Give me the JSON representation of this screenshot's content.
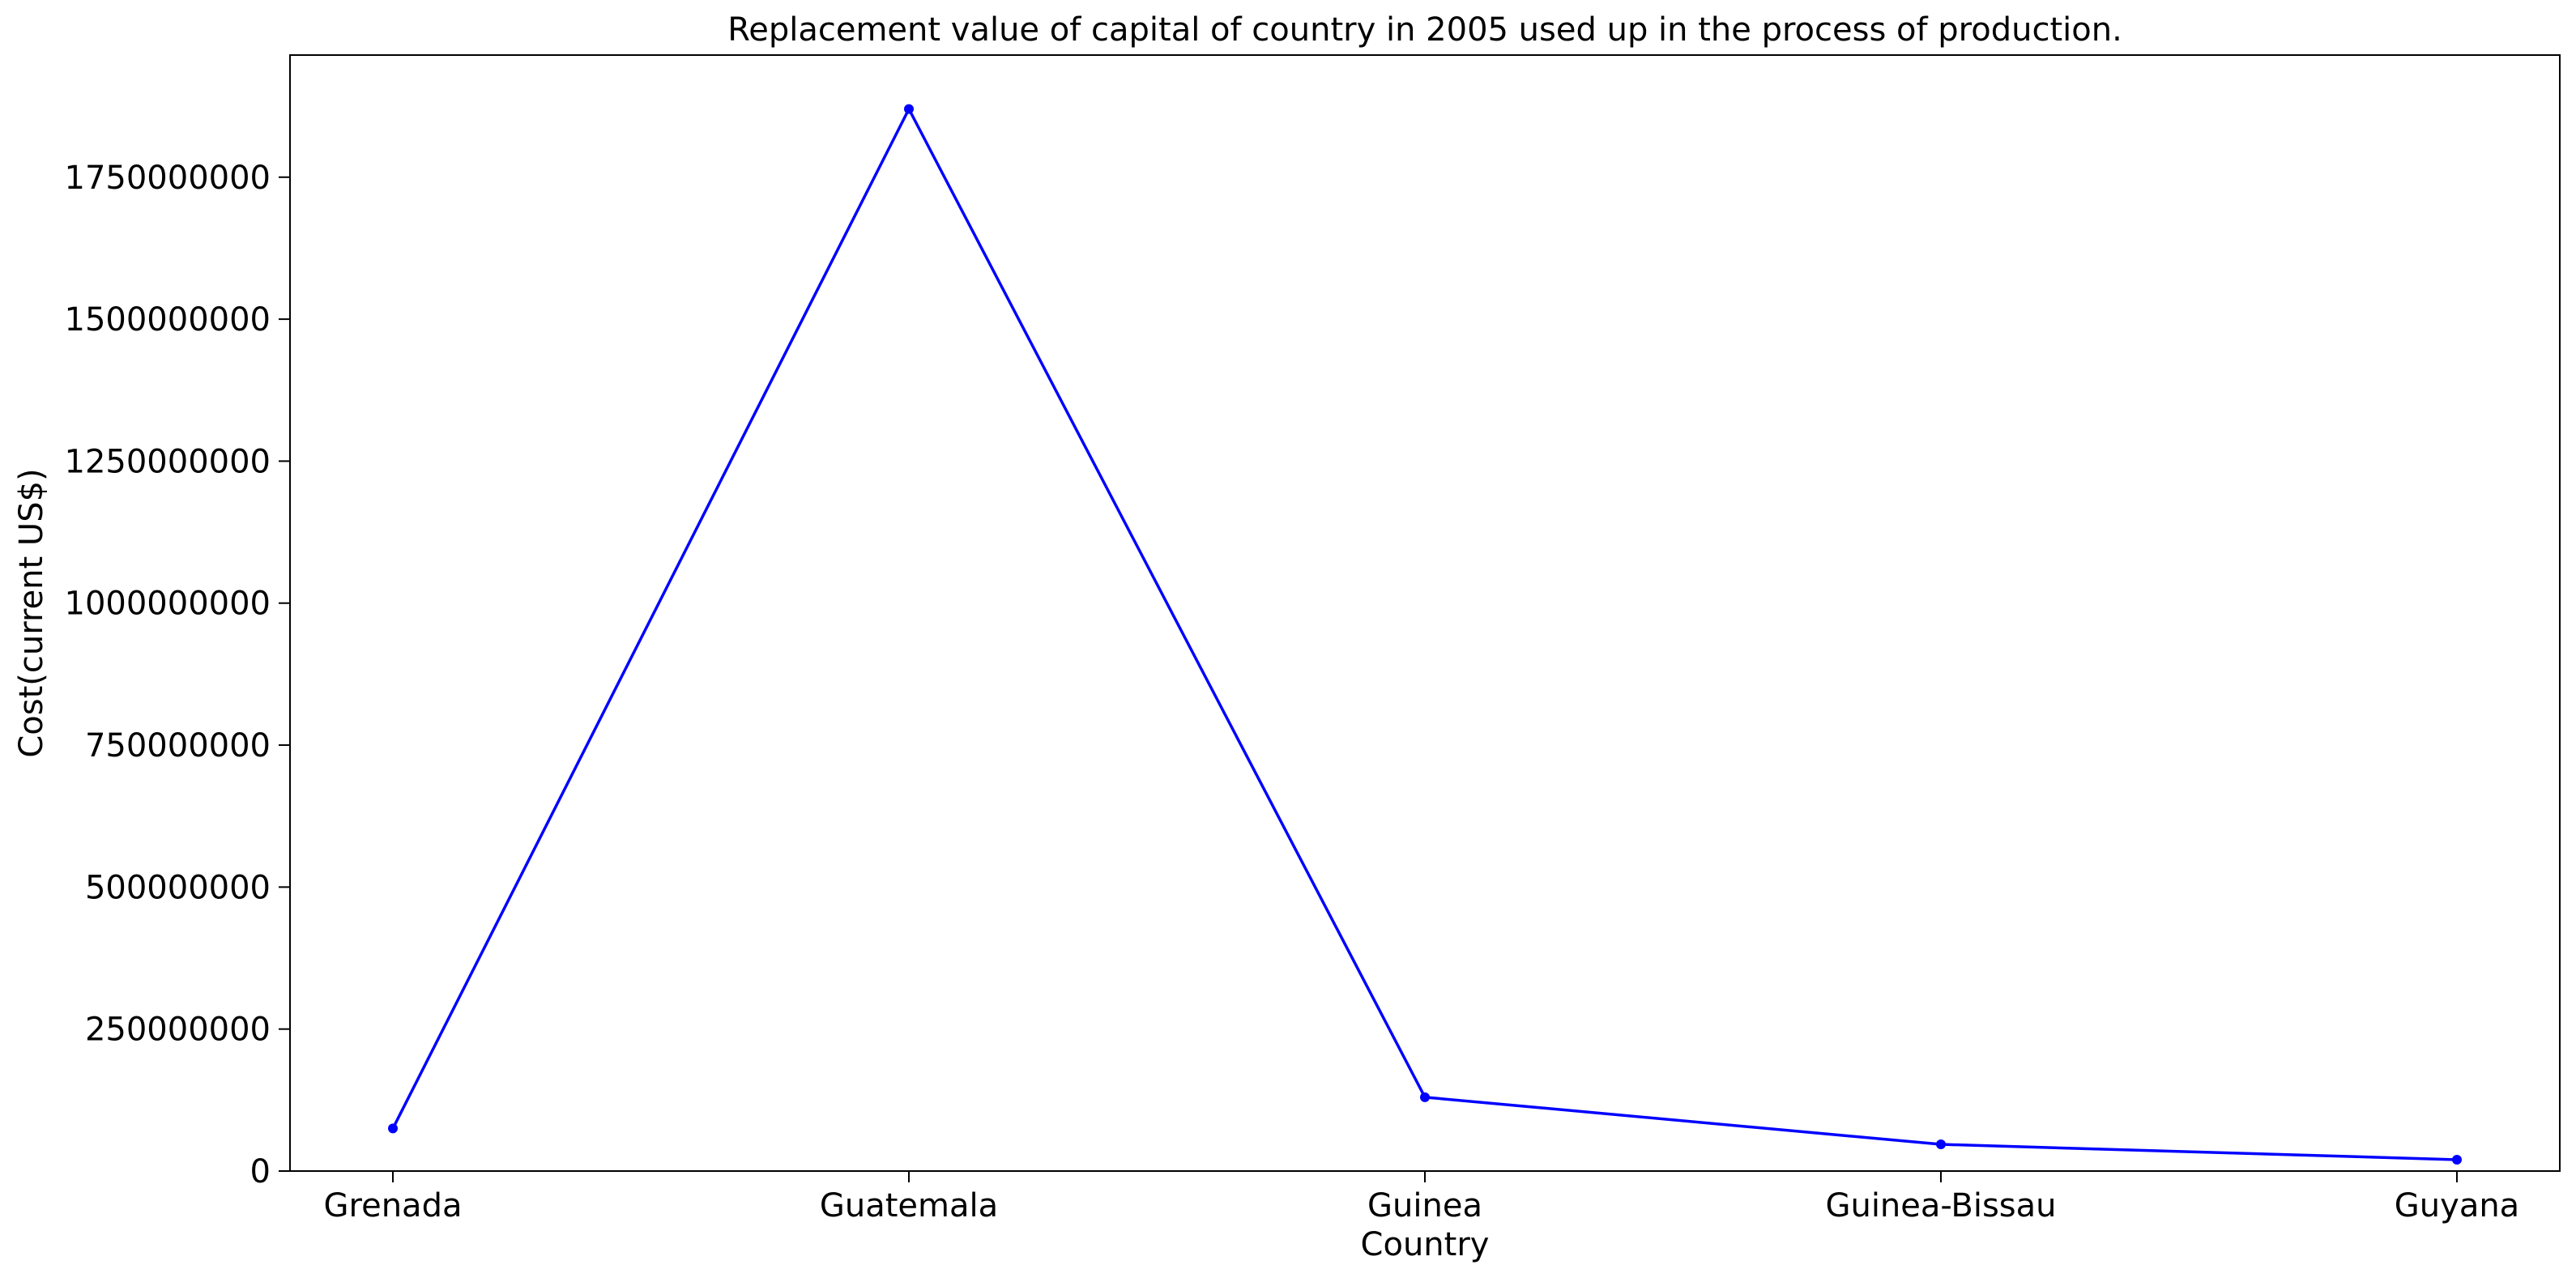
{
  "chart_data": {
    "type": "line",
    "title": "Replacement value of capital of country in 2005 used up in the process of production.",
    "xlabel": "Country",
    "ylabel": "Cost(current US$)",
    "categories": [
      "Grenada",
      "Guatemala",
      "Guinea",
      "Guinea-Bissau",
      "Guyana"
    ],
    "series": [
      {
        "values": [
          75000000,
          1870000000,
          130000000,
          47000000,
          20000000
        ],
        "color": "#0000ff"
      }
    ],
    "ylim": [
      0,
      1965000000
    ],
    "yticks": [
      0,
      250000000,
      500000000,
      750000000,
      1000000000,
      1250000000,
      1500000000,
      1750000000
    ],
    "ytick_labels": [
      "0",
      "250000000",
      "500000000",
      "750000000",
      "1000000000",
      "1250000000",
      "1500000000",
      "1750000000"
    ],
    "grid": false,
    "legend": "none"
  }
}
